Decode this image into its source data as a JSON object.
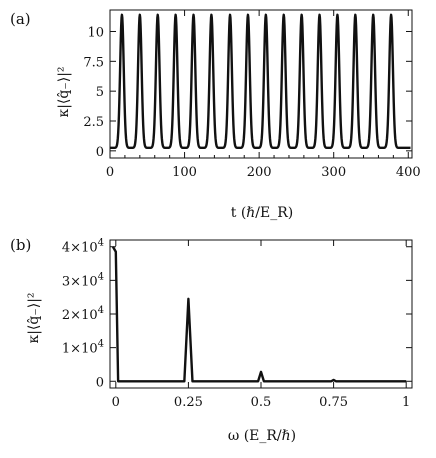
{
  "chart_data": [
    {
      "type": "line",
      "panel_label": "(a)",
      "ylabel": "κ|⟨q̂₋⟩|²",
      "xlabel": "t (ℏ/E_R)",
      "xlim": [
        0,
        405
      ],
      "ylim": [
        -0.6,
        11.8
      ],
      "x_ticks": [
        0,
        100,
        200,
        300,
        400
      ],
      "x_minor_ticks": [
        20,
        40,
        60,
        80,
        120,
        140,
        160,
        180,
        220,
        240,
        260,
        280,
        320,
        340,
        360,
        380
      ],
      "y_ticks": [
        0,
        2.5,
        5,
        7.5,
        10
      ],
      "y_tick_labels": [
        "0",
        "2.5",
        "5",
        "7.5",
        "10"
      ],
      "series": [
        {
          "peak_times": [
            16,
            40,
            64,
            88,
            112,
            136,
            161,
            185,
            209,
            233,
            257,
            281,
            305,
            329,
            353,
            377
          ],
          "peak_value": 11.4,
          "baseline_value": 0.25,
          "peak_width": 3.4,
          "x_end": 403
        }
      ]
    },
    {
      "type": "line",
      "panel_label": "(b)",
      "ylabel": "κ|⟨q̂₋⟩|²",
      "xlabel": "ω (E_R/ℏ)",
      "xlim": [
        -0.02,
        1.02
      ],
      "ylim": [
        -2000,
        42000
      ],
      "x_ticks": [
        0,
        0.25,
        0.5,
        0.75,
        1
      ],
      "x_tick_labels": [
        "0",
        "0.25",
        "0.5",
        "0.75",
        "1"
      ],
      "y_ticks": [
        0,
        10000,
        20000,
        30000,
        40000
      ],
      "y_tick_labels": [
        {
          "mant": "0",
          "exp": ""
        },
        {
          "mant": "1×10",
          "exp": "4"
        },
        {
          "mant": "2×10",
          "exp": "4"
        },
        {
          "mant": "3×10",
          "exp": "4"
        },
        {
          "mant": "4×10",
          "exp": "4"
        }
      ],
      "series": [
        {
          "x": [
            -0.01,
            0.0,
            0.008,
            0.236,
            0.25,
            0.264,
            0.49,
            0.5,
            0.51,
            0.742,
            0.75,
            0.758,
            1.0
          ],
          "y": [
            40000,
            38500,
            0,
            0,
            24500,
            0,
            0,
            2800,
            0,
            0,
            400,
            0,
            0
          ]
        }
      ]
    }
  ]
}
